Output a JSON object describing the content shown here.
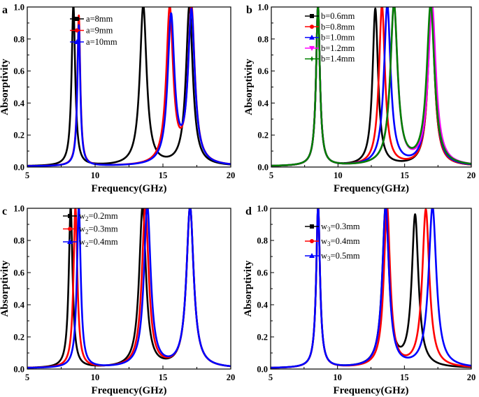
{
  "chart_data": [
    {
      "type": "line",
      "panel_label": "a",
      "xlabel": "Frequency(GHz)",
      "ylabel": "Absorptivity",
      "xlim": [
        5,
        20
      ],
      "ylim": [
        0,
        1.0
      ],
      "xticks": [
        "5",
        "10",
        "15",
        "20"
      ],
      "yticks": [
        "0.0",
        "0.2",
        "0.4",
        "0.6",
        "0.8",
        "1.0"
      ],
      "grid": false,
      "legend_position": "top-center",
      "series": [
        {
          "sym": "a",
          "sub": "",
          "val": "=8mm",
          "color": "#000000",
          "marker": "square",
          "peaks": [
            [
              8.4,
              1.0,
              0.16
            ],
            [
              13.55,
              1.0,
              0.3
            ],
            [
              16.95,
              1.0,
              0.3
            ]
          ]
        },
        {
          "sym": "a",
          "sub": "",
          "val": "=9mm",
          "color": "#ff0000",
          "marker": "circle",
          "peaks": [
            [
              8.8,
              0.94,
              0.13
            ],
            [
              15.5,
              0.97,
              0.3
            ],
            [
              17.1,
              0.98,
              0.3
            ]
          ]
        },
        {
          "sym": "a",
          "sub": "",
          "val": "=10mm",
          "color": "#0000ff",
          "marker": "triangle",
          "peaks": [
            [
              8.8,
              0.88,
              0.13
            ],
            [
              15.6,
              0.92,
              0.3
            ],
            [
              17.1,
              0.95,
              0.3
            ]
          ]
        }
      ]
    },
    {
      "type": "line",
      "panel_label": "b",
      "xlabel": "Frequency(GHz)",
      "ylabel": "Absorptivity",
      "xlim": [
        5,
        20
      ],
      "ylim": [
        0,
        1.0
      ],
      "xticks": [
        "5",
        "10",
        "15",
        "20"
      ],
      "yticks": [
        "0.0",
        "0.2",
        "0.4",
        "0.6",
        "0.8",
        "1.0"
      ],
      "grid": false,
      "legend_position": "top-left",
      "series": [
        {
          "sym": "b",
          "sub": "",
          "val": "=0.6mm",
          "color": "#000000",
          "marker": "square",
          "peaks": [
            [
              8.5,
              1.0,
              0.17
            ],
            [
              12.8,
              0.98,
              0.25
            ],
            [
              17.0,
              1.0,
              0.3
            ]
          ]
        },
        {
          "sym": "b",
          "sub": "",
          "val": "=0.8mm",
          "color": "#ff0000",
          "marker": "circle",
          "peaks": [
            [
              8.5,
              1.0,
              0.17
            ],
            [
              13.3,
              1.0,
              0.27
            ],
            [
              17.0,
              1.0,
              0.3
            ]
          ]
        },
        {
          "sym": "b",
          "sub": "",
          "val": "=1.0mm",
          "color": "#0000ff",
          "marker": "triangle",
          "peaks": [
            [
              8.5,
              1.0,
              0.17
            ],
            [
              13.7,
              1.0,
              0.3
            ],
            [
              17.0,
              1.0,
              0.32
            ]
          ]
        },
        {
          "sym": "b",
          "sub": "",
          "val": "=1.2mm",
          "color": "#ff00ff",
          "marker": "triangle-down",
          "peaks": [
            [
              8.5,
              1.0,
              0.17
            ],
            [
              14.2,
              1.0,
              0.33
            ],
            [
              17.05,
              1.0,
              0.35
            ]
          ]
        },
        {
          "sym": "b",
          "sub": "",
          "val": "=1.4mm",
          "color": "#008000",
          "marker": "star",
          "peaks": [
            [
              8.5,
              1.0,
              0.17
            ],
            [
              14.2,
              1.0,
              0.33
            ],
            [
              16.95,
              1.0,
              0.35
            ]
          ]
        }
      ]
    },
    {
      "type": "line",
      "panel_label": "c",
      "xlabel": "Frequency(GHz)",
      "ylabel": "Absorptivity",
      "xlim": [
        5,
        20
      ],
      "ylim": [
        0,
        1.0
      ],
      "xticks": [
        "5",
        "10",
        "15",
        "20"
      ],
      "yticks": [
        "0.0",
        "0.2",
        "0.4",
        "0.6",
        "0.8",
        "1.0"
      ],
      "grid": false,
      "legend_position": "top-left",
      "series": [
        {
          "sym": "w",
          "sub": "2",
          "val": "=0.2mm",
          "color": "#000000",
          "marker": "square",
          "peaks": [
            [
              8.2,
              1.0,
              0.17
            ],
            [
              13.5,
              1.0,
              0.3
            ],
            [
              17.0,
              1.0,
              0.32
            ]
          ]
        },
        {
          "sym": "w",
          "sub": "2",
          "val": "=0.3mm",
          "color": "#ff0000",
          "marker": "circle",
          "peaks": [
            [
              8.55,
              1.0,
              0.17
            ],
            [
              13.7,
              1.0,
              0.3
            ],
            [
              17.0,
              1.0,
              0.32
            ]
          ]
        },
        {
          "sym": "w",
          "sub": "2",
          "val": "=0.4mm",
          "color": "#0000ff",
          "marker": "triangle",
          "peaks": [
            [
              8.8,
              1.0,
              0.17
            ],
            [
              13.85,
              1.0,
              0.3
            ],
            [
              17.0,
              1.0,
              0.32
            ]
          ]
        }
      ]
    },
    {
      "type": "line",
      "panel_label": "d",
      "xlabel": "Frequency(GHz)",
      "ylabel": "Absorptivity",
      "xlim": [
        5,
        20
      ],
      "ylim": [
        0,
        1.0
      ],
      "xticks": [
        "5",
        "10",
        "15",
        "20"
      ],
      "yticks": [
        "0.0",
        "0.2",
        "0.4",
        "0.6",
        "0.8",
        "1.0"
      ],
      "grid": false,
      "legend_position": "top-left",
      "series": [
        {
          "sym": "w",
          "sub": "3",
          "val": "=0.3mm",
          "color": "#000000",
          "marker": "square",
          "peaks": [
            [
              8.55,
              1.0,
              0.17
            ],
            [
              13.6,
              1.0,
              0.3
            ],
            [
              15.8,
              0.94,
              0.3
            ]
          ]
        },
        {
          "sym": "w",
          "sub": "3",
          "val": "=0.4mm",
          "color": "#ff0000",
          "marker": "circle",
          "peaks": [
            [
              8.55,
              1.0,
              0.17
            ],
            [
              13.7,
              1.0,
              0.28
            ],
            [
              16.6,
              0.98,
              0.32
            ]
          ]
        },
        {
          "sym": "w",
          "sub": "3",
          "val": "=0.5mm",
          "color": "#0000ff",
          "marker": "triangle",
          "peaks": [
            [
              8.55,
              1.0,
              0.17
            ],
            [
              13.6,
              1.0,
              0.3
            ],
            [
              17.1,
              1.0,
              0.35
            ]
          ]
        }
      ]
    }
  ]
}
